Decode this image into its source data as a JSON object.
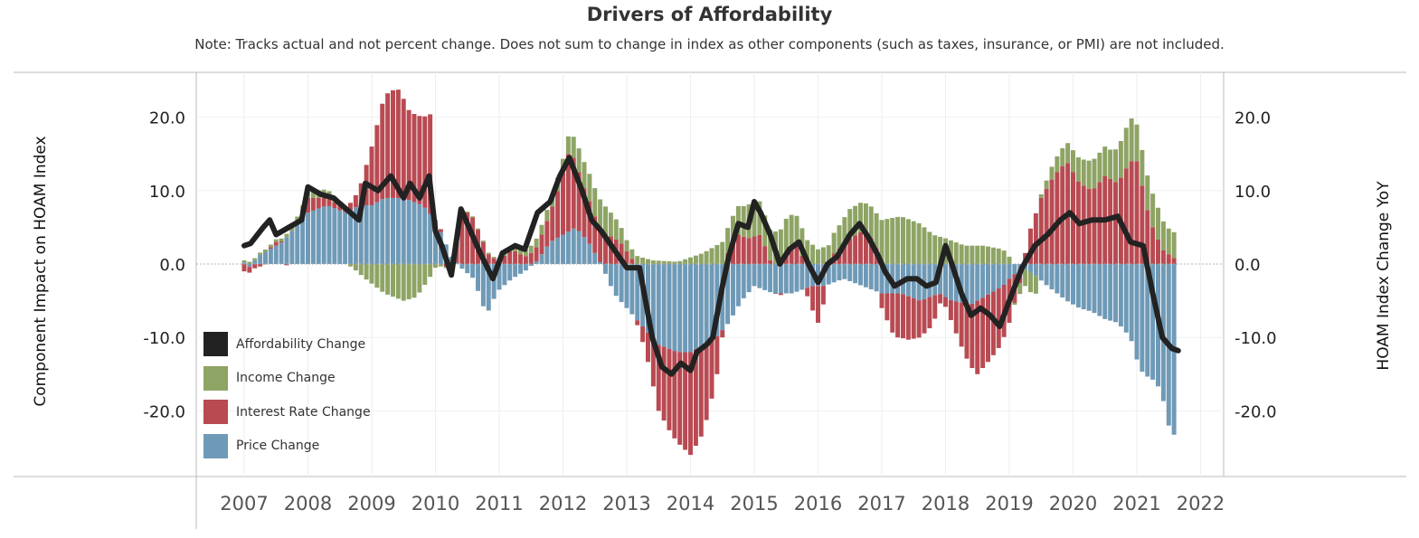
{
  "chart_data": {
    "type": "bar",
    "title": "Drivers of Affordability",
    "subtitle": "Note: Tracks actual and not percent change. Does not sum to change in index as other components (such as taxes, insurance, or PMI) are not included.",
    "ylabel_left": "Component Impact on HOAM Index",
    "ylabel_right": "HOAM Index Change YoY",
    "ylim": [
      -29,
      27
    ],
    "yticks": [
      20,
      10,
      0,
      -10,
      -20
    ],
    "ytick_labels": [
      "20.0",
      "10.0",
      "0.0",
      "-10.0",
      "-20.0"
    ],
    "x_tick_labels": [
      "2007",
      "2008",
      "2009",
      "2010",
      "2011",
      "2012",
      "2013",
      "2014",
      "2015",
      "2016",
      "2017",
      "2018",
      "2019",
      "2020",
      "2021",
      "2022"
    ],
    "x_range": [
      2007,
      2021.5
    ],
    "grid": true,
    "legend_placement": "bottom-left",
    "series": [
      {
        "name": "Affordability Change",
        "color": "#222222",
        "type": "line",
        "knots": [
          [
            2007.0,
            2.5
          ],
          [
            2007.1,
            2.8
          ],
          [
            2007.3,
            5
          ],
          [
            2007.4,
            6
          ],
          [
            2007.5,
            4
          ],
          [
            2007.7,
            5
          ],
          [
            2007.9,
            6
          ],
          [
            2008.0,
            10.5
          ],
          [
            2008.2,
            9.5
          ],
          [
            2008.4,
            9
          ],
          [
            2008.6,
            7.5
          ],
          [
            2008.8,
            6
          ],
          [
            2008.9,
            11
          ],
          [
            2009.1,
            10
          ],
          [
            2009.3,
            12
          ],
          [
            2009.5,
            9
          ],
          [
            2009.6,
            11
          ],
          [
            2009.75,
            9
          ],
          [
            2009.9,
            12
          ],
          [
            2010.0,
            4.5
          ],
          [
            2010.1,
            2.5
          ],
          [
            2010.25,
            -1.5
          ],
          [
            2010.4,
            7.5
          ],
          [
            2010.55,
            4.5
          ],
          [
            2010.7,
            1.5
          ],
          [
            2010.9,
            -2
          ],
          [
            2011.05,
            1.5
          ],
          [
            2011.25,
            2.5
          ],
          [
            2011.4,
            2
          ],
          [
            2011.6,
            7
          ],
          [
            2011.8,
            8.5
          ],
          [
            2011.95,
            12
          ],
          [
            2012.1,
            14.5
          ],
          [
            2012.3,
            10
          ],
          [
            2012.45,
            6
          ],
          [
            2012.6,
            4.5
          ],
          [
            2012.8,
            2
          ],
          [
            2013.0,
            -0.5
          ],
          [
            2013.2,
            -0.5
          ],
          [
            2013.4,
            -10
          ],
          [
            2013.55,
            -14
          ],
          [
            2013.7,
            -15
          ],
          [
            2013.85,
            -13.5
          ],
          [
            2014.0,
            -14.5
          ],
          [
            2014.1,
            -12
          ],
          [
            2014.25,
            -11
          ],
          [
            2014.35,
            -10
          ],
          [
            2014.5,
            -3
          ],
          [
            2014.6,
            1
          ],
          [
            2014.75,
            5.5
          ],
          [
            2014.9,
            5
          ],
          [
            2015.0,
            8.5
          ],
          [
            2015.1,
            7
          ],
          [
            2015.25,
            4
          ],
          [
            2015.4,
            0
          ],
          [
            2015.55,
            2
          ],
          [
            2015.7,
            3
          ],
          [
            2015.85,
            0
          ],
          [
            2016.0,
            -2.5
          ],
          [
            2016.15,
            0
          ],
          [
            2016.3,
            1
          ],
          [
            2016.5,
            4
          ],
          [
            2016.65,
            5.5
          ],
          [
            2016.8,
            3.5
          ],
          [
            2016.95,
            1
          ],
          [
            2017.05,
            -1
          ],
          [
            2017.2,
            -3
          ],
          [
            2017.4,
            -2
          ],
          [
            2017.55,
            -2
          ],
          [
            2017.7,
            -3
          ],
          [
            2017.85,
            -2.5
          ],
          [
            2018.0,
            2.5
          ],
          [
            2018.1,
            0
          ],
          [
            2018.25,
            -4
          ],
          [
            2018.4,
            -7
          ],
          [
            2018.55,
            -6
          ],
          [
            2018.7,
            -7
          ],
          [
            2018.85,
            -8.5
          ],
          [
            2019.0,
            -5
          ],
          [
            2019.2,
            -0.5
          ],
          [
            2019.4,
            2.5
          ],
          [
            2019.6,
            4
          ],
          [
            2019.8,
            6
          ],
          [
            2019.95,
            7
          ],
          [
            2020.1,
            5.5
          ],
          [
            2020.3,
            6
          ],
          [
            2020.5,
            6
          ],
          [
            2020.7,
            6.5
          ],
          [
            2020.9,
            3
          ],
          [
            2021.1,
            2.5
          ],
          [
            2021.25,
            -4
          ],
          [
            2021.4,
            -10
          ],
          [
            2021.55,
            -11.5
          ],
          [
            2021.65,
            -11.8
          ]
        ]
      },
      {
        "name": "Income Change",
        "color": "#8ea465",
        "type": "bar",
        "knots": [
          [
            2007.0,
            0.3
          ],
          [
            2007.3,
            0.3
          ],
          [
            2007.6,
            0.4
          ],
          [
            2007.9,
            0.6
          ],
          [
            2008.0,
            0.8
          ],
          [
            2008.3,
            1.2
          ],
          [
            2008.5,
            0.5
          ],
          [
            2008.7,
            -0.5
          ],
          [
            2008.9,
            -2
          ],
          [
            2009.2,
            -4
          ],
          [
            2009.5,
            -5
          ],
          [
            2009.7,
            -4.5
          ],
          [
            2009.9,
            -2
          ],
          [
            2010.0,
            -0.5
          ],
          [
            2010.3,
            0.1
          ],
          [
            2010.8,
            0.2
          ],
          [
            2011.0,
            0.2
          ],
          [
            2011.5,
            1
          ],
          [
            2012.0,
            2
          ],
          [
            2012.3,
            3.5
          ],
          [
            2012.6,
            4
          ],
          [
            2012.8,
            3
          ],
          [
            2013.0,
            1.5
          ],
          [
            2013.4,
            0.5
          ],
          [
            2013.8,
            0.3
          ],
          [
            2014.2,
            1.5
          ],
          [
            2014.6,
            3.5
          ],
          [
            2014.8,
            4
          ],
          [
            2015.0,
            5
          ],
          [
            2015.2,
            4
          ],
          [
            2015.5,
            5
          ],
          [
            2015.8,
            3.5
          ],
          [
            2016.0,
            2
          ],
          [
            2016.3,
            3
          ],
          [
            2016.5,
            4
          ],
          [
            2016.7,
            4
          ],
          [
            2016.9,
            4.5
          ],
          [
            2017.0,
            6
          ],
          [
            2017.3,
            6.5
          ],
          [
            2017.6,
            5.5
          ],
          [
            2017.8,
            4
          ],
          [
            2018.0,
            3.5
          ],
          [
            2018.3,
            2.5
          ],
          [
            2018.6,
            2.5
          ],
          [
            2018.9,
            2
          ],
          [
            2019.0,
            1
          ],
          [
            2019.2,
            -2
          ],
          [
            2019.4,
            -3
          ],
          [
            2019.5,
            0.5
          ],
          [
            2019.7,
            2
          ],
          [
            2020.0,
            3
          ],
          [
            2020.3,
            4
          ],
          [
            2020.6,
            4
          ],
          [
            2020.9,
            6
          ],
          [
            2021.0,
            5
          ],
          [
            2021.3,
            4.5
          ],
          [
            2021.5,
            3.5
          ],
          [
            2021.65,
            3.5
          ]
        ]
      },
      {
        "name": "Interest Rate Change",
        "color": "#b94a52",
        "type": "bar",
        "knots": [
          [
            2007.0,
            -1
          ],
          [
            2007.2,
            -0.5
          ],
          [
            2007.5,
            0.5
          ],
          [
            2007.7,
            -0.3
          ],
          [
            2007.9,
            1
          ],
          [
            2008.0,
            2
          ],
          [
            2008.3,
            1
          ],
          [
            2008.6,
            0.5
          ],
          [
            2008.8,
            2
          ],
          [
            2009.0,
            8
          ],
          [
            2009.2,
            14
          ],
          [
            2009.4,
            15
          ],
          [
            2009.6,
            12
          ],
          [
            2009.8,
            12
          ],
          [
            2009.95,
            14
          ],
          [
            2010.0,
            0
          ],
          [
            2010.1,
            0.5
          ],
          [
            2010.25,
            -1.5
          ],
          [
            2010.4,
            7
          ],
          [
            2010.55,
            7
          ],
          [
            2010.7,
            4
          ],
          [
            2010.85,
            1
          ],
          [
            2011.0,
            0.5
          ],
          [
            2011.2,
            2
          ],
          [
            2011.4,
            1
          ],
          [
            2011.6,
            2
          ],
          [
            2011.8,
            4
          ],
          [
            2011.95,
            7
          ],
          [
            2012.1,
            11
          ],
          [
            2012.3,
            7
          ],
          [
            2012.5,
            5
          ],
          [
            2012.7,
            4
          ],
          [
            2012.9,
            3
          ],
          [
            2013.1,
            0.5
          ],
          [
            2013.3,
            -3
          ],
          [
            2013.5,
            -9
          ],
          [
            2013.7,
            -11.5
          ],
          [
            2014.0,
            -14
          ],
          [
            2014.2,
            -12
          ],
          [
            2014.4,
            -6
          ],
          [
            2014.5,
            -1
          ],
          [
            2014.6,
            2
          ],
          [
            2014.75,
            4
          ],
          [
            2014.9,
            3.5
          ],
          [
            2015.1,
            4
          ],
          [
            2015.25,
            0.5
          ],
          [
            2015.4,
            -0.5
          ],
          [
            2015.55,
            2
          ],
          [
            2015.7,
            2.5
          ],
          [
            2015.9,
            -3
          ],
          [
            2016.0,
            -5
          ],
          [
            2016.2,
            1
          ],
          [
            2016.5,
            3.5
          ],
          [
            2016.7,
            4.5
          ],
          [
            2016.9,
            3
          ],
          [
            2017.0,
            -2
          ],
          [
            2017.2,
            -6
          ],
          [
            2017.4,
            -6
          ],
          [
            2017.6,
            -5
          ],
          [
            2017.8,
            -4
          ],
          [
            2017.95,
            -0.5
          ],
          [
            2018.1,
            -3
          ],
          [
            2018.3,
            -7
          ],
          [
            2018.5,
            -10
          ],
          [
            2018.7,
            -9
          ],
          [
            2018.85,
            -8
          ],
          [
            2019.0,
            -6
          ],
          [
            2019.2,
            -1
          ],
          [
            2019.3,
            4
          ],
          [
            2019.5,
            9
          ],
          [
            2019.7,
            12
          ],
          [
            2019.9,
            14
          ],
          [
            2020.1,
            11
          ],
          [
            2020.3,
            10
          ],
          [
            2020.5,
            12
          ],
          [
            2020.7,
            11
          ],
          [
            2020.9,
            14
          ],
          [
            2021.0,
            14
          ],
          [
            2021.2,
            6
          ],
          [
            2021.4,
            2
          ],
          [
            2021.55,
            1
          ],
          [
            2021.65,
            0.5
          ]
        ]
      },
      {
        "name": "Price Change",
        "color": "#6f9ab7",
        "type": "bar",
        "knots": [
          [
            2007.0,
            0.2
          ],
          [
            2007.1,
            -0.5
          ],
          [
            2007.2,
            1
          ],
          [
            2007.4,
            2
          ],
          [
            2007.6,
            3
          ],
          [
            2007.9,
            6
          ],
          [
            2008.0,
            7
          ],
          [
            2008.3,
            8
          ],
          [
            2008.6,
            7
          ],
          [
            2008.8,
            8
          ],
          [
            2009.0,
            8
          ],
          [
            2009.2,
            9
          ],
          [
            2009.5,
            9
          ],
          [
            2009.8,
            8
          ],
          [
            2010.0,
            6
          ],
          [
            2010.15,
            3
          ],
          [
            2010.25,
            1
          ],
          [
            2010.4,
            -0.5
          ],
          [
            2010.6,
            -2
          ],
          [
            2010.8,
            -7
          ],
          [
            2010.9,
            -5
          ],
          [
            2011.0,
            -3.5
          ],
          [
            2011.2,
            -2
          ],
          [
            2011.4,
            -1
          ],
          [
            2011.6,
            0.5
          ],
          [
            2011.8,
            3
          ],
          [
            2012.0,
            4
          ],
          [
            2012.2,
            5
          ],
          [
            2012.4,
            3
          ],
          [
            2012.6,
            0
          ],
          [
            2012.8,
            -4
          ],
          [
            2013.0,
            -6
          ],
          [
            2013.3,
            -9
          ],
          [
            2013.5,
            -11
          ],
          [
            2013.8,
            -12
          ],
          [
            2014.0,
            -12
          ],
          [
            2014.2,
            -11
          ],
          [
            2014.4,
            -10
          ],
          [
            2014.6,
            -8
          ],
          [
            2014.8,
            -5
          ],
          [
            2015.0,
            -3
          ],
          [
            2015.3,
            -4
          ],
          [
            2015.6,
            -4
          ],
          [
            2015.9,
            -3
          ],
          [
            2016.1,
            -3
          ],
          [
            2016.4,
            -2
          ],
          [
            2016.7,
            -3
          ],
          [
            2017.0,
            -4
          ],
          [
            2017.3,
            -4
          ],
          [
            2017.6,
            -5
          ],
          [
            2017.9,
            -4
          ],
          [
            2018.1,
            -5
          ],
          [
            2018.4,
            -5.5
          ],
          [
            2018.7,
            -4
          ],
          [
            2018.9,
            -3
          ],
          [
            2019.0,
            -2
          ],
          [
            2019.2,
            -0.5
          ],
          [
            2019.4,
            -1.5
          ],
          [
            2019.6,
            -3
          ],
          [
            2019.9,
            -5
          ],
          [
            2020.1,
            -6
          ],
          [
            2020.3,
            -6.5
          ],
          [
            2020.5,
            -7.5
          ],
          [
            2020.7,
            -8
          ],
          [
            2020.9,
            -10
          ],
          [
            2021.0,
            -13
          ],
          [
            2021.1,
            -15
          ],
          [
            2021.3,
            -16
          ],
          [
            2021.4,
            -18
          ],
          [
            2021.5,
            -22
          ],
          [
            2021.6,
            -23.5
          ],
          [
            2021.65,
            -22
          ]
        ]
      }
    ]
  }
}
